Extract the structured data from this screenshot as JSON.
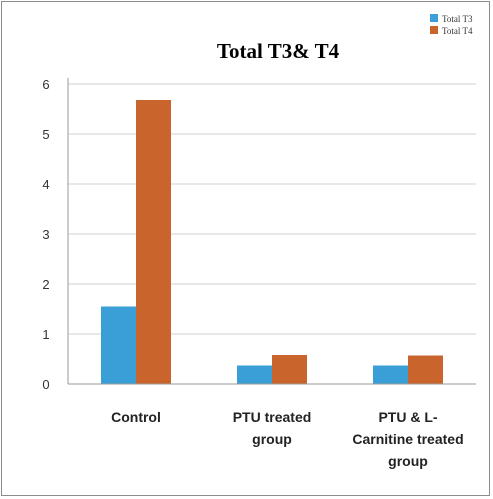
{
  "chart_data": {
    "type": "bar",
    "title": "Total T3& T4",
    "categories": [
      [
        "Control"
      ],
      [
        "PTU treated",
        "group"
      ],
      [
        "PTU & L-",
        "Carnitine treated",
        "group"
      ]
    ],
    "series": [
      {
        "name": "Total T3",
        "color": "#3a9fd6",
        "values": [
          1.55,
          0.37,
          0.37
        ]
      },
      {
        "name": "Total T4",
        "color": "#c9642c",
        "values": [
          5.68,
          0.58,
          0.57
        ]
      }
    ],
    "ylim": [
      0,
      6
    ],
    "yticks": [
      0,
      1,
      2,
      3,
      4,
      5,
      6
    ],
    "grid": true,
    "legend": "top-right"
  }
}
